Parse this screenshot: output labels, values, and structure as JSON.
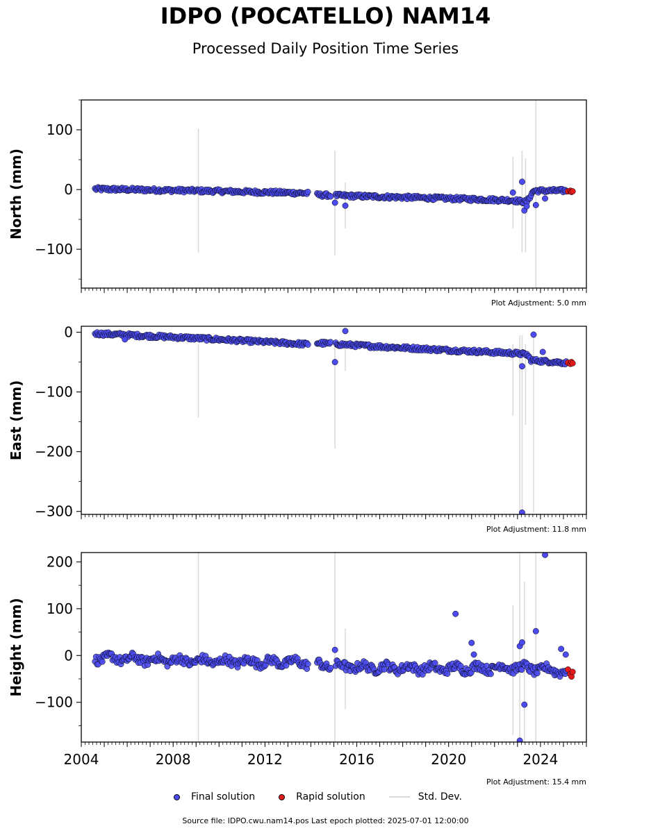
{
  "title": "IDPO (POCATELLO) NAM14",
  "subtitle": "Processed Daily Position Time Series",
  "footer": "Source file: IDPO.cwu.nam14.pos  Last epoch plotted: 2025-07-01 12:00:00",
  "legend": {
    "final": "Final solution",
    "rapid": "Rapid solution",
    "std": "Std. Dev."
  },
  "colors": {
    "final": "#4b4bf0",
    "rapid": "#e31a1c",
    "std": "#d9d9d9"
  },
  "chart_data": [
    {
      "type": "scatter",
      "ylabel": "North (mm)",
      "xlim": [
        2004.0,
        2026.0
      ],
      "ylim": [
        -165,
        150
      ],
      "yticks": [
        100,
        0,
        -100
      ],
      "adjustment": "Plot Adjustment: 5.0 mm",
      "trend": [
        [
          2004.5,
          1
        ],
        [
          2009,
          -2
        ],
        [
          2013.8,
          -6
        ],
        [
          2014.3,
          -9
        ],
        [
          2016,
          -11
        ],
        [
          2020,
          -15
        ],
        [
          2022.8,
          -18
        ],
        [
          2023.4,
          -21
        ],
        [
          2023.7,
          -2
        ],
        [
          2025.4,
          -2
        ]
      ],
      "scatter_amp": 3,
      "gaps": [
        [
          2013.9,
          2014.25
        ],
        [
          2014.9,
          2015.05
        ]
      ],
      "outliers": [
        [
          2015.05,
          -22
        ],
        [
          2015.5,
          -27
        ],
        [
          2022.8,
          -5
        ],
        [
          2023.2,
          13
        ],
        [
          2023.3,
          -35
        ],
        [
          2023.4,
          -28
        ],
        [
          2023.8,
          -26
        ],
        [
          2024.2,
          -15
        ]
      ],
      "std_bars": [
        [
          2009.1,
          102,
          -105
        ],
        [
          2015.05,
          65,
          -110
        ],
        [
          2015.5,
          12,
          -65
        ],
        [
          2022.8,
          55,
          -65
        ],
        [
          2023.2,
          65,
          -105
        ],
        [
          2023.35,
          52,
          -105
        ],
        [
          2023.8,
          150,
          -165
        ]
      ],
      "rapid": [
        [
          2025.2,
          -3
        ],
        [
          2025.3,
          -2
        ],
        [
          2025.35,
          -4
        ],
        [
          2025.4,
          -3
        ]
      ]
    },
    {
      "type": "scatter",
      "ylabel": "East (mm)",
      "xlim": [
        2004.0,
        2026.0
      ],
      "ylim": [
        -305,
        10
      ],
      "yticks": [
        0,
        -100,
        -200,
        -300
      ],
      "adjustment": "Plot Adjustment: 11.8 mm",
      "trend": [
        [
          2004.5,
          -2
        ],
        [
          2009,
          -10
        ],
        [
          2013.8,
          -20
        ],
        [
          2014.3,
          -18
        ],
        [
          2016,
          -22
        ],
        [
          2020,
          -30
        ],
        [
          2022.8,
          -35
        ],
        [
          2023.4,
          -37
        ],
        [
          2023.6,
          -47
        ],
        [
          2025.4,
          -52
        ]
      ],
      "scatter_amp": 3,
      "gaps": [
        [
          2013.9,
          2014.25
        ],
        [
          2014.9,
          2015.05
        ]
      ],
      "outliers": [
        [
          2005.9,
          -12
        ],
        [
          2015.05,
          -50
        ],
        [
          2015.5,
          2
        ],
        [
          2023.2,
          -57
        ],
        [
          2023.7,
          -4
        ],
        [
          2024.1,
          -33
        ],
        [
          2023.2,
          -302
        ]
      ],
      "std_bars": [
        [
          2009.1,
          -20,
          -143
        ],
        [
          2015.05,
          -20,
          -195
        ],
        [
          2015.5,
          -20,
          -65
        ],
        [
          2022.8,
          -20,
          -140
        ],
        [
          2023.1,
          -5,
          -302
        ],
        [
          2023.2,
          -5,
          -302
        ],
        [
          2023.35,
          -20,
          -155
        ],
        [
          2023.7,
          -5,
          -302
        ]
      ],
      "rapid": [
        [
          2025.2,
          -51
        ],
        [
          2025.3,
          -53
        ],
        [
          2025.35,
          -50
        ],
        [
          2025.4,
          -52
        ]
      ]
    },
    {
      "type": "scatter",
      "ylabel": "Height (mm)",
      "xlim": [
        2004.0,
        2026.0
      ],
      "ylim": [
        -185,
        220
      ],
      "yticks": [
        200,
        100,
        0,
        -100
      ],
      "xticks": [
        2004,
        2008,
        2012,
        2016,
        2020,
        2024
      ],
      "adjustment": "Plot Adjustment: 15.4 mm",
      "trend": [
        [
          2004.5,
          -5
        ],
        [
          2009,
          -12
        ],
        [
          2013.8,
          -15
        ],
        [
          2014.3,
          -20
        ],
        [
          2016,
          -25
        ],
        [
          2020,
          -28
        ],
        [
          2022.8,
          -25
        ],
        [
          2025.4,
          -35
        ]
      ],
      "scatter_amp": 9,
      "gaps": [
        [
          2013.9,
          2014.25
        ],
        [
          2014.9,
          2015.05
        ]
      ],
      "outliers": [
        [
          2015.05,
          12
        ],
        [
          2020.3,
          89
        ],
        [
          2021.0,
          27
        ],
        [
          2021.1,
          2
        ],
        [
          2023.1,
          20
        ],
        [
          2023.2,
          28
        ],
        [
          2023.3,
          -105
        ],
        [
          2023.1,
          -182
        ],
        [
          2023.8,
          52
        ],
        [
          2024.2,
          215
        ],
        [
          2024.9,
          14
        ],
        [
          2025.1,
          2
        ]
      ],
      "std_bars": [
        [
          2009.1,
          220,
          -185
        ],
        [
          2015.05,
          220,
          -185
        ],
        [
          2015.5,
          58,
          -115
        ],
        [
          2022.8,
          108,
          -170
        ],
        [
          2023.1,
          220,
          -185
        ],
        [
          2023.3,
          158,
          -185
        ],
        [
          2023.8,
          220,
          -185
        ]
      ],
      "rapid": [
        [
          2025.2,
          -30
        ],
        [
          2025.3,
          -40
        ],
        [
          2025.35,
          -45
        ],
        [
          2025.4,
          -35
        ]
      ]
    }
  ]
}
